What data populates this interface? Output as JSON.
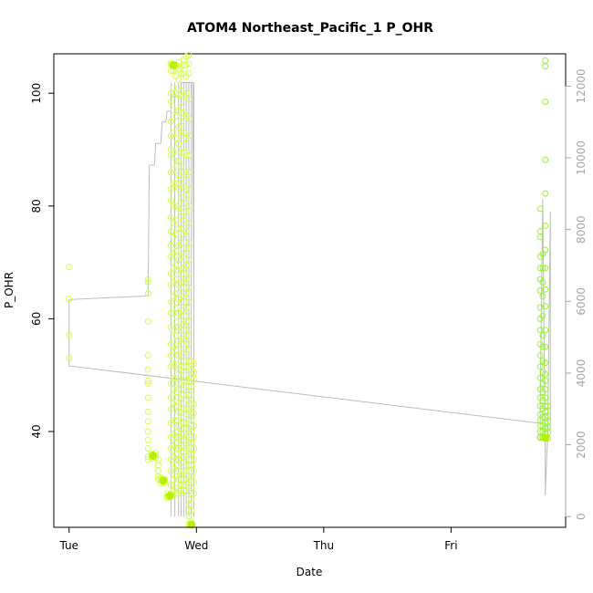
{
  "chart_data": {
    "type": "scatter",
    "title": "ATOM4 Northeast_Pacific_1 P_OHR",
    "xlabel": "Date",
    "ylabel": "P_OHR",
    "x_ticks": [
      "Tue",
      "Wed",
      "Thu",
      "Fri"
    ],
    "x_range_days": [
      -0.12,
      3.9
    ],
    "y_ticks": [
      40,
      60,
      80,
      100
    ],
    "ylim": [
      23,
      107
    ],
    "y2_ticks": [
      0,
      2000,
      4000,
      6000,
      8000,
      10000,
      12000
    ],
    "y2lim": [
      -300,
      12900
    ],
    "grid": false,
    "legend": "none",
    "colors": {
      "early_points": "#d4ff4a",
      "late_points": "#9cf23a",
      "dense_points": "#b8f000",
      "secondary_line": "#bdbdbd",
      "frame": "#000000",
      "right_axis": "#a6a6a6"
    },
    "points": [
      {
        "x": 0.0,
        "values": [
          69.2,
          63.5,
          57.1,
          53.0
        ]
      },
      {
        "x": 0.62,
        "values": [
          67,
          66.5,
          64.5,
          59.5,
          53.5,
          51,
          49,
          48.5,
          46,
          43.5,
          41.8,
          40,
          38.5,
          37,
          35.5,
          35
        ]
      },
      {
        "x": 0.65,
        "values": [
          36,
          35.7,
          35.2
        ]
      },
      {
        "x": 0.68,
        "values": [
          36.2,
          35.8,
          35.3
        ]
      },
      {
        "x": 0.7,
        "values": [
          35,
          34,
          33,
          32,
          31.5
        ]
      },
      {
        "x": 0.72,
        "values": [
          31.8,
          31.2,
          30.8
        ]
      },
      {
        "x": 0.75,
        "values": [
          31.5,
          30.9
        ]
      },
      {
        "x": 0.77,
        "values": [
          29,
          28.5,
          28.2
        ]
      },
      {
        "x": 0.8,
        "values": [
          105.3,
          105,
          104,
          100,
          98.5,
          95,
          92.5,
          90,
          89,
          86,
          83,
          81,
          78,
          75.5,
          73,
          71,
          68,
          66,
          63,
          61,
          58.5,
          55.5,
          53.5,
          51.5,
          48.5,
          46,
          44,
          41.5,
          39,
          37,
          35,
          33,
          30.5,
          29,
          28.5
        ]
      },
      {
        "x": 0.82,
        "values": [
          105,
          104,
          101,
          97,
          93,
          89.5,
          86.5,
          84,
          80,
          77,
          74.5,
          71.5,
          69,
          66.5,
          64,
          61,
          58,
          55,
          52,
          49.5,
          47.5,
          45,
          42,
          39.5,
          37.5,
          35.5,
          33.5,
          31.5,
          29.5,
          28.5
        ]
      },
      {
        "x": 0.84,
        "values": [
          105,
          104.5,
          103,
          100,
          96,
          92,
          88,
          84,
          80,
          77.5,
          75,
          72,
          69.5,
          67,
          64.5,
          62,
          59.5,
          57,
          54.5,
          52,
          49.5,
          47,
          44.5,
          42,
          40,
          38,
          36,
          34,
          32,
          30,
          29
        ]
      },
      {
        "x": 0.86,
        "values": [
          105.5,
          104.3,
          102.5,
          99.8,
          97,
          94,
          91,
          88,
          85.5,
          83,
          79.5,
          76,
          73,
          70.5,
          68.5,
          66,
          63.5,
          61,
          58.5,
          56,
          53.5,
          51,
          48.5,
          46,
          43.5,
          41,
          39,
          37,
          35,
          33,
          31.5,
          29.5
        ]
      },
      {
        "x": 0.88,
        "values": [
          104.8,
          103.5,
          100.5,
          97.5,
          95,
          92.5,
          89.5,
          87,
          84,
          81.5,
          79,
          76,
          73.5,
          71,
          68,
          65.5,
          63,
          60.5,
          58,
          55.5,
          52.5,
          50,
          47.5,
          45,
          42.5,
          40.5,
          38.5,
          36.5,
          34.5,
          32.5,
          30.5,
          29
        ]
      },
      {
        "x": 0.9,
        "values": [
          106,
          105,
          103.5,
          99.5,
          96.5,
          93,
          89.5,
          86,
          83.5,
          80.5,
          77.5,
          75,
          71.5,
          69,
          66.5,
          64,
          61.5,
          59,
          56.5,
          54,
          51.5,
          49,
          46.5,
          44,
          41.5,
          39.5,
          37.5,
          35.5,
          33,
          31.5,
          30.5,
          29.5
        ]
      },
      {
        "x": 0.92,
        "values": [
          106.5,
          105,
          103,
          100,
          96,
          92,
          89,
          85.5,
          82,
          79,
          75.5,
          72.5,
          69.5,
          67,
          64.5,
          62,
          59.5,
          57,
          54.5,
          51.5,
          49,
          46.5,
          44,
          41.5,
          39,
          37,
          35,
          33,
          31
        ]
      },
      {
        "x": 0.94,
        "values": [
          106.8,
          105.2,
          103.5,
          99,
          95.5,
          92.5,
          89,
          86,
          83,
          80,
          77,
          73.5,
          70.5,
          68,
          65.5,
          63,
          60.5,
          58,
          55.5,
          52.5,
          50,
          48,
          45.5,
          43,
          40.5,
          38.5,
          36.5,
          34,
          31.5,
          29.5,
          27,
          25,
          23.5
        ]
      },
      {
        "x": 0.96,
        "values": [
          52.5,
          51,
          49.5,
          48,
          46.5,
          45,
          43.5,
          42,
          40,
          38,
          36,
          34,
          32,
          30,
          28,
          26,
          24,
          23.5
        ]
      },
      {
        "x": 0.98,
        "values": [
          52,
          50.5,
          49.3,
          44.8,
          43.2,
          41,
          39,
          37,
          35,
          33,
          31,
          29
        ]
      },
      {
        "x": 3.7,
        "values": [
          79.5,
          75.5,
          74.5,
          71,
          69,
          67,
          65,
          62,
          60,
          58,
          55.5,
          53.5,
          51.5,
          49.5,
          47.5,
          46,
          44.5,
          43,
          42,
          41,
          40,
          39,
          38.9
        ]
      },
      {
        "x": 3.72,
        "values": [
          71.5,
          69,
          66.5,
          64,
          60.5,
          57,
          55,
          52.5,
          50.5,
          48.5,
          47,
          45.5,
          44,
          42.5,
          41,
          40,
          39,
          38.9
        ]
      },
      {
        "x": 3.74,
        "values": [
          105.8,
          104.8,
          98.5,
          88.2,
          82.2,
          76.5,
          72.2,
          69,
          65.2,
          62.2,
          58,
          55,
          52.2,
          50.2,
          49,
          47.5,
          46,
          44.5,
          43.5,
          42.5,
          41.5,
          40.5,
          39.5,
          38.8
        ]
      },
      {
        "x": 3.76,
        "values": [
          44.5,
          42.8,
          41.7,
          40.8,
          39.8,
          38.8
        ]
      }
    ],
    "secondary_series": [
      {
        "x": 0.0,
        "y2": 6050
      },
      {
        "x": 0.0,
        "y2": 4200
      },
      {
        "x": 3.7,
        "y2": 2600
      },
      {
        "x": 3.7,
        "y2": 3000
      },
      {
        "x": 3.72,
        "y2": 8850
      },
      {
        "x": 3.74,
        "y2": 1500
      },
      {
        "x": 3.74,
        "y2": 600
      },
      {
        "x": 3.76,
        "y2": 2400
      },
      {
        "x": 3.78,
        "y2": 8500
      },
      {
        "x": 3.78,
        "y2": 2400
      }
    ],
    "secondary_step": [
      {
        "x": 0.0,
        "y2": 6050
      },
      {
        "x": 0.61,
        "y2": 6150
      },
      {
        "x": 0.62,
        "y2": 6150
      },
      {
        "x": 0.63,
        "y2": 9800
      },
      {
        "x": 0.67,
        "y2": 9800
      },
      {
        "x": 0.68,
        "y2": 10400
      },
      {
        "x": 0.72,
        "y2": 10400
      },
      {
        "x": 0.73,
        "y2": 11000
      },
      {
        "x": 0.76,
        "y2": 11000
      },
      {
        "x": 0.77,
        "y2": 11300
      },
      {
        "x": 0.8,
        "y2": 11300
      },
      {
        "x": 0.8,
        "y2": 11700
      },
      {
        "x": 0.88,
        "y2": 11700
      },
      {
        "x": 0.88,
        "y2": 12100
      },
      {
        "x": 0.97,
        "y2": 12100
      },
      {
        "x": 0.98,
        "y2": 6150
      }
    ],
    "secondary_spikes": [
      0.8,
      0.83,
      0.86,
      0.88,
      0.9,
      0.92,
      0.94,
      0.96,
      0.98
    ]
  }
}
